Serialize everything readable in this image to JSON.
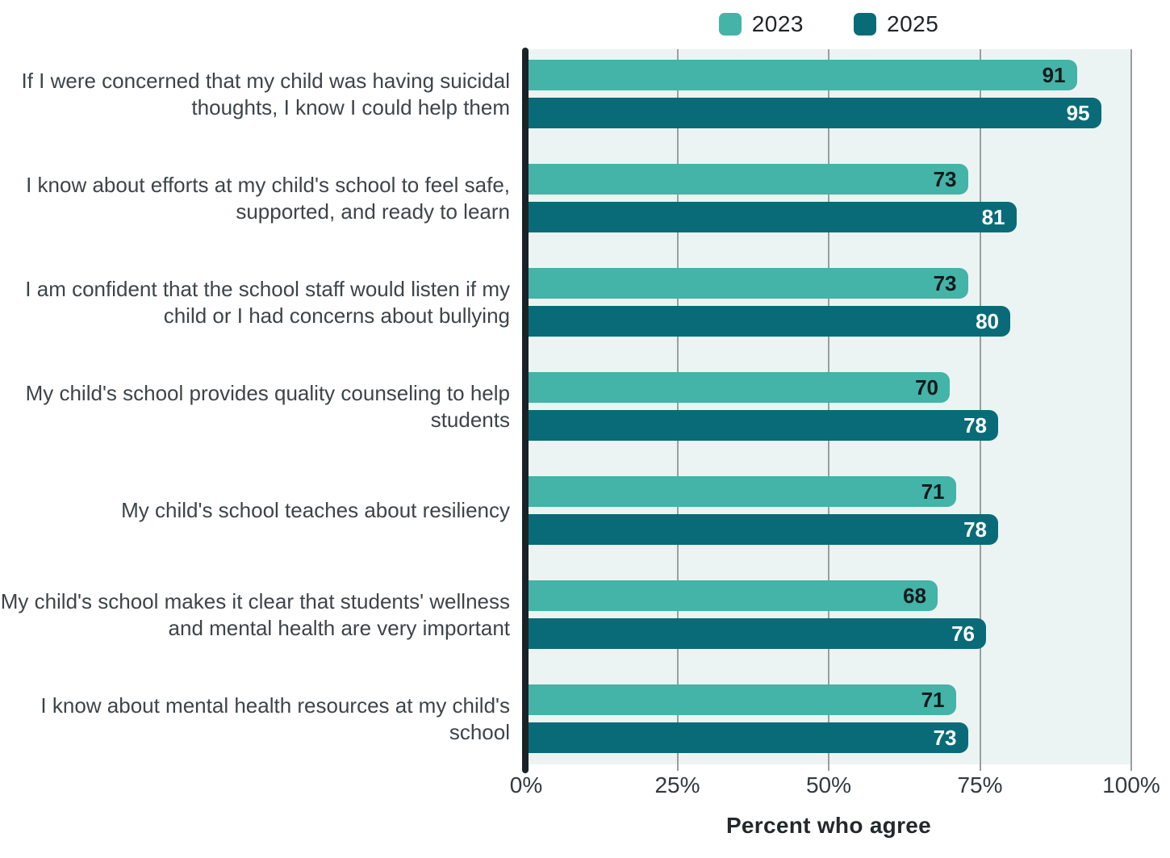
{
  "legend": {
    "items": [
      {
        "label": "2023",
        "color": "#44b3a8"
      },
      {
        "label": "2025",
        "color": "#0a6b78"
      }
    ]
  },
  "chart_data": {
    "type": "bar",
    "orientation": "horizontal",
    "title": "",
    "xlabel": "Percent who agree",
    "ylabel": "",
    "xlim": [
      0,
      100
    ],
    "x_ticks": [
      {
        "label": "0%",
        "value": 0
      },
      {
        "label": "25%",
        "value": 25
      },
      {
        "label": "50%",
        "value": 50
      },
      {
        "label": "75%",
        "value": 75
      },
      {
        "label": "100%",
        "value": 100
      }
    ],
    "grid": "vertical-on",
    "legend_position": "top-center",
    "plot_background": "#ecf4f3",
    "gridline_color": "#9a9ea0",
    "axis_line_color": "#1b2225",
    "categories": [
      "If I were concerned that my child was having suicidal thoughts, I know I could help them",
      "I know about efforts at my child's school to feel safe, supported, and ready to learn",
      "I am confident that the school staff would listen if my child or I had concerns about bullying",
      "My child's school provides quality counseling to help students",
      "My child's school teaches about resiliency",
      "My child's school makes it clear that students' wellness and mental health are very important",
      "I know about mental health resources at my child's school"
    ],
    "series": [
      {
        "name": "2023",
        "color": "#44b3a8",
        "label_color": "#141a1c",
        "values": [
          91,
          73,
          73,
          70,
          71,
          68,
          71
        ]
      },
      {
        "name": "2025",
        "color": "#0a6b78",
        "label_color": "#ffffff",
        "values": [
          95,
          81,
          80,
          78,
          78,
          76,
          73
        ]
      }
    ]
  }
}
